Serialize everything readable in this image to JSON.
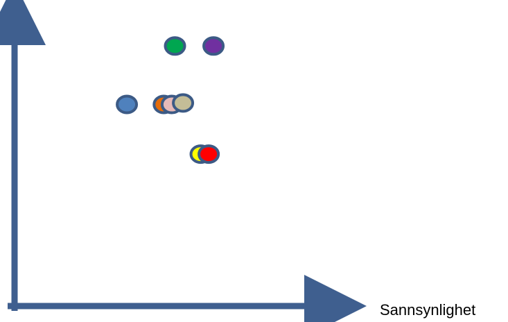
{
  "chart_data": {
    "type": "scatter",
    "title": "",
    "xlabel": "Sannsynlighet",
    "ylabel": "",
    "axis_color": "#3F5F8F",
    "marker_outline_color": "#3C5A85",
    "points": [
      {
        "color_name": "blue",
        "color": "#4F81BD",
        "x": 3.5,
        "y": 6.9
      },
      {
        "color_name": "orange",
        "color": "#E46C0A",
        "x": 4.65,
        "y": 6.9
      },
      {
        "color_name": "pink",
        "color": "#E6B9B8",
        "x": 4.9,
        "y": 6.9
      },
      {
        "color_name": "tan",
        "color": "#C4BD97",
        "x": 5.25,
        "y": 6.95
      },
      {
        "color_name": "green",
        "color": "#00A650",
        "x": 5.0,
        "y": 8.9
      },
      {
        "color_name": "purple",
        "color": "#7030A0",
        "x": 6.2,
        "y": 8.9
      },
      {
        "color_name": "yellow",
        "color": "#FFFF00",
        "x": 5.8,
        "y": 5.2
      },
      {
        "color_name": "red",
        "color": "#FF0000",
        "x": 6.05,
        "y": 5.2
      }
    ],
    "xlim": [
      0,
      10
    ],
    "ylim": [
      0,
      10
    ]
  }
}
